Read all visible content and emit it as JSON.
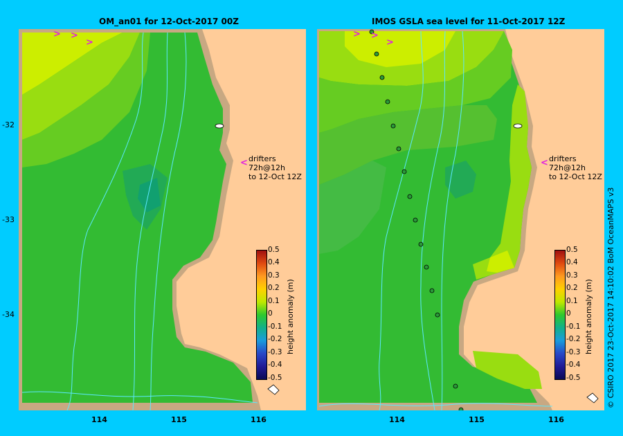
{
  "left_map": {
    "title": "OM_an01  for 12-Oct-2017 00Z"
  },
  "right_map": {
    "title": "IMOS GSLA sea level  for 11-Oct-2017 12Z"
  },
  "lat_labels": [
    "-32",
    "-33",
    "-34"
  ],
  "lon_labels": [
    "114",
    "115",
    "116"
  ],
  "drifters_note": {
    "line1": "drifters 72h@12h",
    "line2": "to 12-Oct 12Z"
  },
  "colorbar": {
    "label": "height anomaly (m)",
    "ticks": [
      "0.5",
      "0.4",
      "0.3",
      "0.2",
      "0.1",
      "0",
      "-0.1",
      "-0.2",
      "-0.3",
      "-0.4",
      "-0.5"
    ],
    "min": -0.5,
    "max": 0.5
  },
  "credit": "© CSIRO 2017   23-Oct-2017 14:10:02 BoM OceanMAPS v3",
  "colors": {
    "background": "#00ccff",
    "land": "#ffcc99",
    "shelf": "#c8a882",
    "drifter": "#e020e0"
  }
}
